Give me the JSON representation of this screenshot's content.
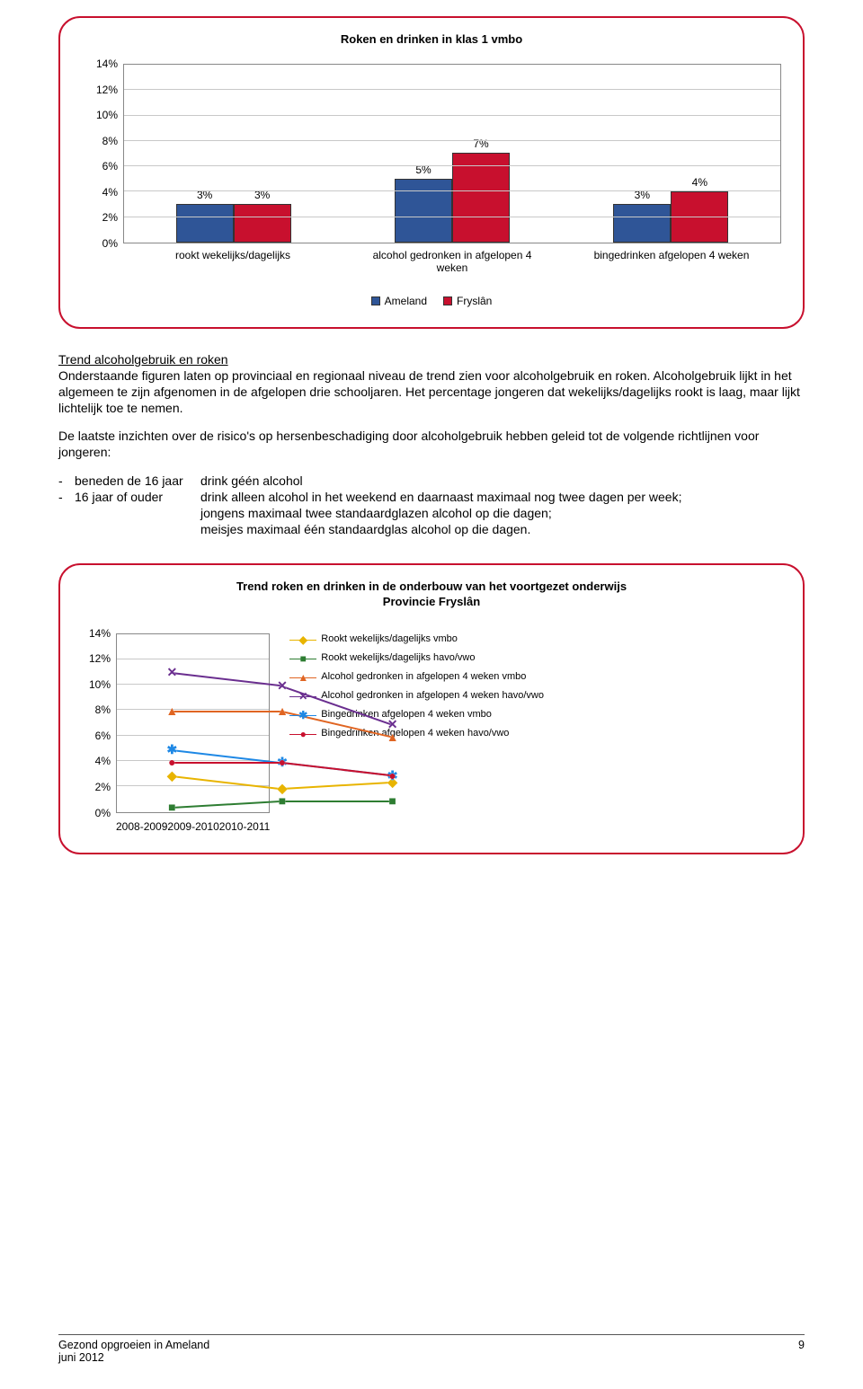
{
  "chart1": {
    "type": "bar",
    "title": "Roken en drinken in klas 1 vmbo",
    "ylabel_suffix": "%",
    "ymax": 14,
    "ystep": 2,
    "categories": [
      "rookt wekelijks/dagelijks",
      "alcohol gedronken in afgelopen 4 weken",
      "bingedrinken afgelopen 4 weken"
    ],
    "series": [
      {
        "name": "Ameland",
        "color": "#2f5597",
        "values": [
          3,
          5,
          3
        ]
      },
      {
        "name": "Fryslân",
        "color": "#c8102e",
        "values": [
          3,
          7,
          4
        ]
      }
    ],
    "bar_border": "#333333",
    "grid_color": "#c8c8c8",
    "background": "#ffffff"
  },
  "section": {
    "heading": "Trend alcoholgebruik en roken",
    "para1": "Onderstaande figuren laten op provinciaal en regionaal niveau de trend zien voor alcoholgebruik en roken. Alcoholgebruik lijkt in het algemeen te zijn afgenomen in de afgelopen drie schooljaren. Het percentage jongeren dat wekelijks/dagelijks rookt is laag, maar lijkt lichtelijk toe te nemen.",
    "para2_lead": "De laatste inzichten over de risico's op hersenbeschadiging door alcoholgebruik hebben geleid tot de volgende richtlijnen voor jongeren:",
    "guidelines": [
      {
        "dash": "-",
        "age": "beneden de 16 jaar",
        "text": "drink géén alcohol"
      },
      {
        "dash": "-",
        "age": "16 jaar of ouder",
        "text": "drink alleen alcohol in het weekend en daarnaast maximaal nog twee dagen per week;\njongens maximaal twee standaardglazen alcohol op die dagen;\nmeisjes maximaal één standaardglas alcohol op die dagen."
      }
    ]
  },
  "chart2": {
    "type": "line",
    "title_l1": "Trend roken en drinken in de onderbouw van het voortgezet onderwijs",
    "title_l2": "Provincie Fryslân",
    "ymax": 14,
    "ystep": 2,
    "x_categories": [
      "2008-2009",
      "2009-2010",
      "2010-2011"
    ],
    "grid_color": "#c8c8c8",
    "series": [
      {
        "name": "Rookt wekelijks/dagelijks vmbo",
        "color": "#e8b400",
        "marker": "diamond",
        "values": [
          3,
          2,
          2.5
        ]
      },
      {
        "name": "Rookt wekelijks/dagelijks havo/vwo",
        "color": "#2e7d32",
        "marker": "square",
        "values": [
          0.5,
          1,
          1
        ]
      },
      {
        "name": "Alcohol gedronken in afgelopen 4 weken vmbo",
        "color": "#e06522",
        "marker": "triangle",
        "values": [
          8,
          8,
          6
        ]
      },
      {
        "name": "Alcohol gedronken in afgelopen 4 weken havo/vwo",
        "color": "#6a2e8f",
        "marker": "x",
        "values": [
          11,
          10,
          7
        ]
      },
      {
        "name": "Bingedrinken afgelopen 4 weken vmbo",
        "color": "#1e88e5",
        "marker": "star",
        "values": [
          5,
          4,
          3
        ]
      },
      {
        "name": "Bingedrinken afgelopen 4 weken havo/vwo",
        "color": "#c8102e",
        "marker": "circle",
        "values": [
          4,
          4,
          3
        ]
      }
    ]
  },
  "footer": {
    "line1": "Gezond opgroeien in Ameland",
    "line2": "juni 2012",
    "page": "9"
  }
}
